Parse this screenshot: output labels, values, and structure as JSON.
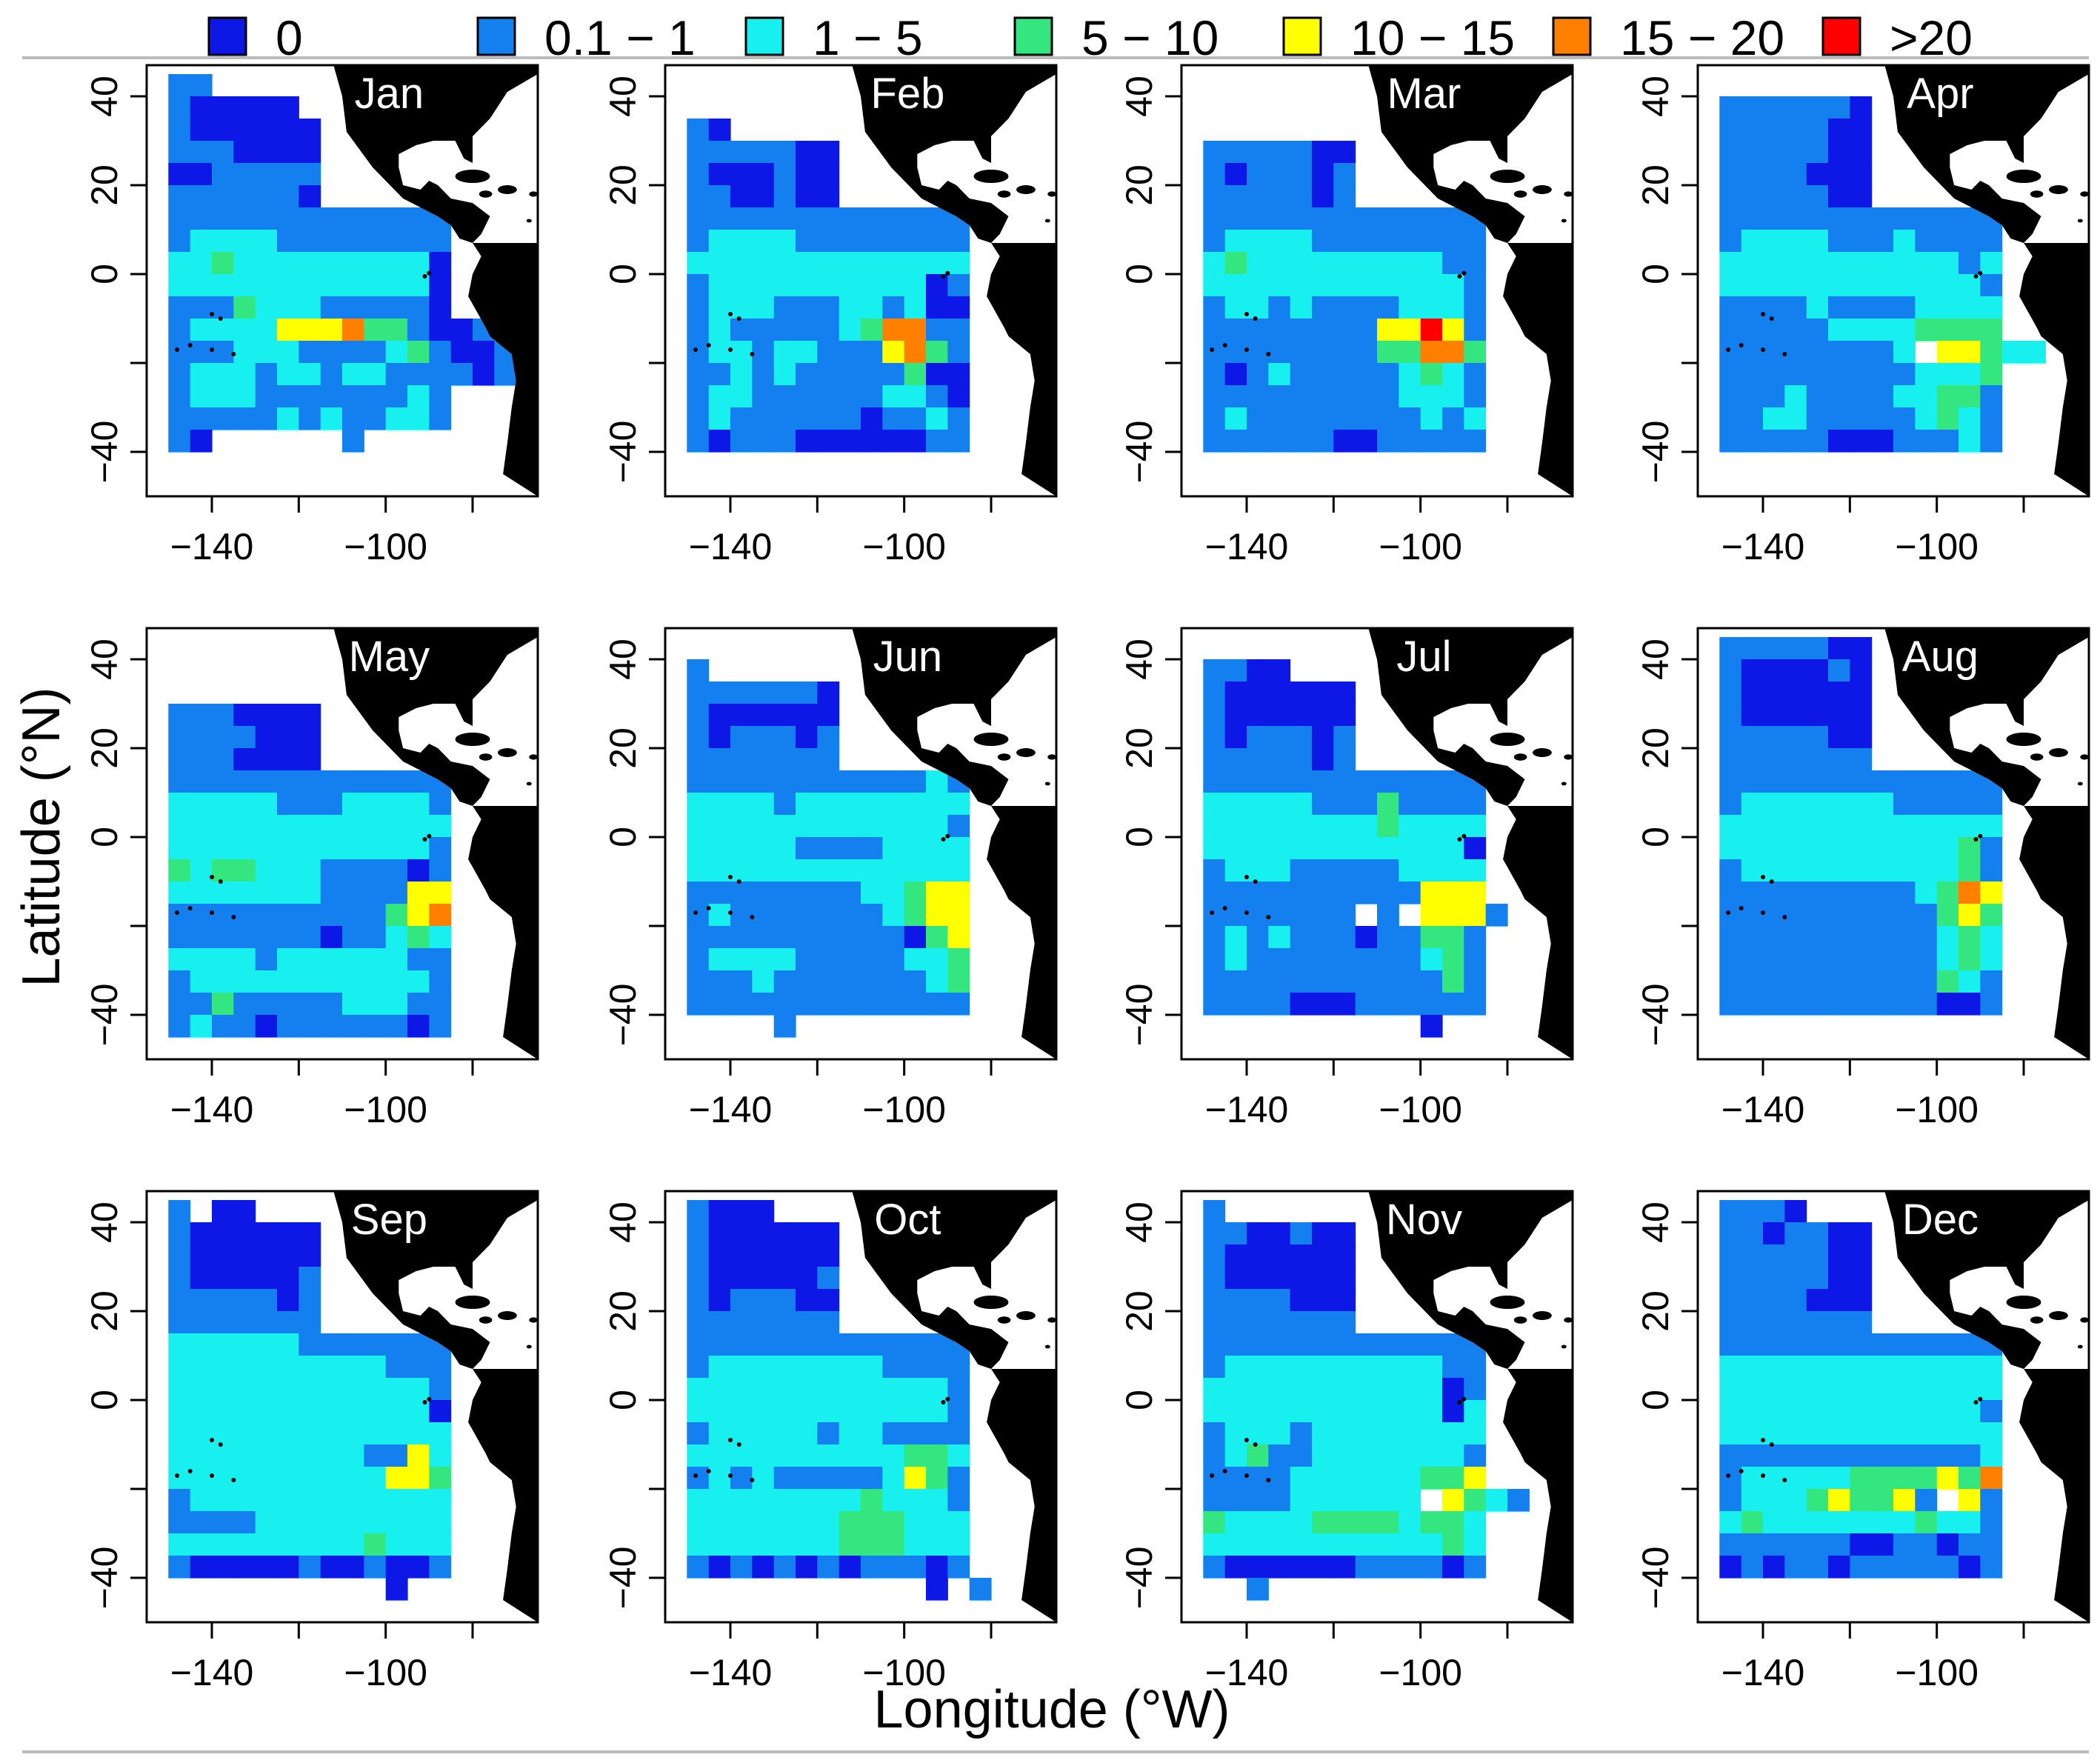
{
  "figure": {
    "xlabel": "Longitude (°W)",
    "ylabel": "Latitude (°N)"
  },
  "legend": [
    {
      "label": "0",
      "color": "#0d17e6"
    },
    {
      "label": "0.1 − 1",
      "color": "#1480f0"
    },
    {
      "label": "1 − 5",
      "color": "#18f0f0"
    },
    {
      "label": "5 − 10",
      "color": "#33e67f"
    },
    {
      "label": "10 − 15",
      "color": "#ffff00"
    },
    {
      "label": "15 − 20",
      "color": "#ff8000"
    },
    {
      "label": ">20",
      "color": "#ff0000"
    }
  ],
  "colors": {
    "land": "#000000",
    "frame": "#000000",
    "background": "#ffffff"
  },
  "chart_data": {
    "type": "heatmap",
    "description_units": "gridded counts per 5° x 5° cell, categorical bins",
    "xlim": [
      -155,
      -65
    ],
    "ylim": [
      -50,
      47
    ],
    "xticks": [
      -140,
      -120,
      -100,
      -80
    ],
    "xtick_labels": [
      "−140",
      "",
      "−100",
      ""
    ],
    "yticks": [
      40,
      20,
      0,
      -20,
      -40
    ],
    "ytick_labels": [
      "40",
      "20",
      "0",
      "",
      "−40"
    ],
    "cell_lon_min": -150,
    "cell_lat_max": 45,
    "cell_size_deg": 5,
    "bins": [
      "0",
      "0.1 − 1",
      "1 − 5",
      "5 − 10",
      "10 − 15",
      "15 − 20",
      ">20"
    ],
    "grid_legend": ". = empty/land, 0 = 0, 1 = 0.1−1, 2 = 1−5, 3 = 5−10, 4 = 10−15, 5 = 15−20, 6 = >20; columns from -150 to -70 step 5, rows from 45 to -45 step 5",
    "months": [
      {
        "name": "Jan",
        "grid": [
          "11..............",
          "100000..........",
          "1000000.........",
          "1110000.........",
          "0011111.........",
          "1111110.........",
          "1111111111111...",
          "1222211111111...",
          "2232222222220...",
          "2222222222220...",
          "1113222111110...",
          "122224445331001.",
          "1112221111231001",
          "1222122122111101",
          "1222111111121...",
          "1111121211221...",
          "10......1.......",
          "................"
        ]
      },
      {
        "name": "Feb",
        "grid": [
          "................",
          "................",
          "10..............",
          "1111100.........",
          "1000100.........",
          "1100100.........",
          "1111111111111...",
          "1222211111111...",
          "2222222222222...",
          "1222222222201...",
          "1222111221200...",
          "1211111235511...",
          "1221221114531...",
          "1121211111300...",
          "1221111112210...",
          "1211111101121...",
          "1011100000011...",
          "................"
        ]
      },
      {
        "name": "Mar",
        "grid": [
          "................",
          "................",
          "................",
          "1111100.........",
          "1011101.........",
          "1111101.........",
          "1111111111111...",
          "1222211111111...",
          "2322222222211...",
          "2222222222221...",
          "1221211112221...",
          "1111111144641...",
          "1111111133553...",
          "1012111112321...",
          "1111111112221...",
          "1211111111212...",
          "1111110011111...",
          "................"
        ]
      },
      {
        "name": "Apr",
        "grid": [
          "................",
          "1111110.........",
          "1111100.........",
          "1111100.........",
          "1111000.........",
          "1111100.........",
          "1111111111111...",
          "1222211121111...",
          "2222222222212...",
          "2222222222221...",
          "1111211112222...",
          "1111122223333...",
          "111111112.44322.",
          "1111111112223...",
          "1112111122331...",
          "1122111112321...",
          "1111100011121...",
          "................"
        ]
      },
      {
        "name": "May",
        "grid": [
          "................",
          "................",
          "................",
          "1110000.........",
          "1111000.........",
          "1110000.........",
          "1111111111111...",
          "2222211122221...",
          "2222222222222...",
          "2222222222221...",
          "3233222111101...",
          "2222222111144...",
          "1111111111345...",
          "1111111011232...",
          "2222122222211...",
          "1222222222221...",
          "1131111122211...",
          "1211011111101..."
        ]
      },
      {
        "name": "Jun",
        "grid": [
          "................",
          "1...............",
          "1111110.........",
          "1000000.........",
          "1011101.........",
          "1111111.........",
          "1111111111121...",
          "2222122222222...",
          "2222222222221...",
          "2222211112222...",
          "2222222222222...",
          "1111111122344...",
          "1211111112344...",
          "1111111111034...",
          "1222211111223...",
          "1112111111123...",
          "1111111111111...",
          "....1..........."
        ]
      },
      {
        "name": "Jul",
        "grid": [
          "................",
          "1100............",
          "1000000.........",
          "1000000.........",
          "1011101.........",
          "1111101.........",
          "1111111111111...",
          "2222211131111...",
          "2222222232222...",
          "2222222222220...",
          "1222111112222...",
          "1111111111444...",
          "1111111.1.4441..",
          "1212111011331...",
          "1211111111231...",
          "1111111111131...",
          "1111000111111...",
          "..........0....."
        ]
      },
      {
        "name": "Aug",
        "grid": [
          "1111100.........",
          "1000010.........",
          "1000000.........",
          "1000000.........",
          "1111100.........",
          "1111111.........",
          "1111111111111...",
          "1222222211111...",
          "2222222222222...",
          "2222222222231...",
          "1222222222231...",
          "1111111112354...",
          "1111111111343...",
          "1111111111232...",
          "1111111111232...",
          "1111111111321...",
          "1111111111001...",
          "................"
        ]
      },
      {
        "name": "Sep",
        "grid": [
          "1.00............",
          "1000000.........",
          "1000000.........",
          "1000001.........",
          "1111101.........",
          "1111111.........",
          "2222221111111...",
          "2222222222111...",
          "2222222222221...",
          "2222222222220...",
          "2222222222222...",
          "2222222221142...",
          "2222222222443...",
          "1222222222222...",
          "1111222222222...",
          "2222222223222...",
          "1000001001001...",
          "..........0....."
        ]
      },
      {
        "name": "Oct",
        "grid": [
          "1000............",
          "1000000.........",
          "1000000.........",
          "1000001.........",
          "1011100.........",
          "1111111.........",
          "1111111111111...",
          "1222222221111...",
          "2222222222221...",
          "2222222222221...",
          "1222221221111...",
          "2222222222332...",
          "1212111112431...",
          "2222222232221...",
          "2222222333222...",
          "2222222333222...",
          "1010101011101...",
          "...........0.1.."
        ]
      },
      {
        "name": "Nov",
        "grid": [
          "1...............",
          "1100100.........",
          "1000000.........",
          "1000000.........",
          "1111000.........",
          "1111111.........",
          "1111111111111...",
          "1222222222211...",
          "2222222222201...",
          "2222222222202...",
          "1222122222222...",
          "1231122222221...",
          "1111222222334...",
          "1111222222.4321.",
          "3222233332332...",
          "2222222222232...",
          "1000000111101...",
          "..1............."
        ]
      },
      {
        "name": "Dec",
        "grid": [
          "1110............",
          "1101100.........",
          "1111100.........",
          "1111100.........",
          "1111000.........",
          "1111111.........",
          "1111111111111...",
          "2222222222222...",
          "2222222222222...",
          "2222222222221...",
          "2222222222222...",
          "1111111111112...",
          "1222223333435...",
          "1222343341.41...",
          "2322222223221...",
          "1111110011011...",
          "0101101111101...",
          "................"
        ]
      }
    ]
  }
}
